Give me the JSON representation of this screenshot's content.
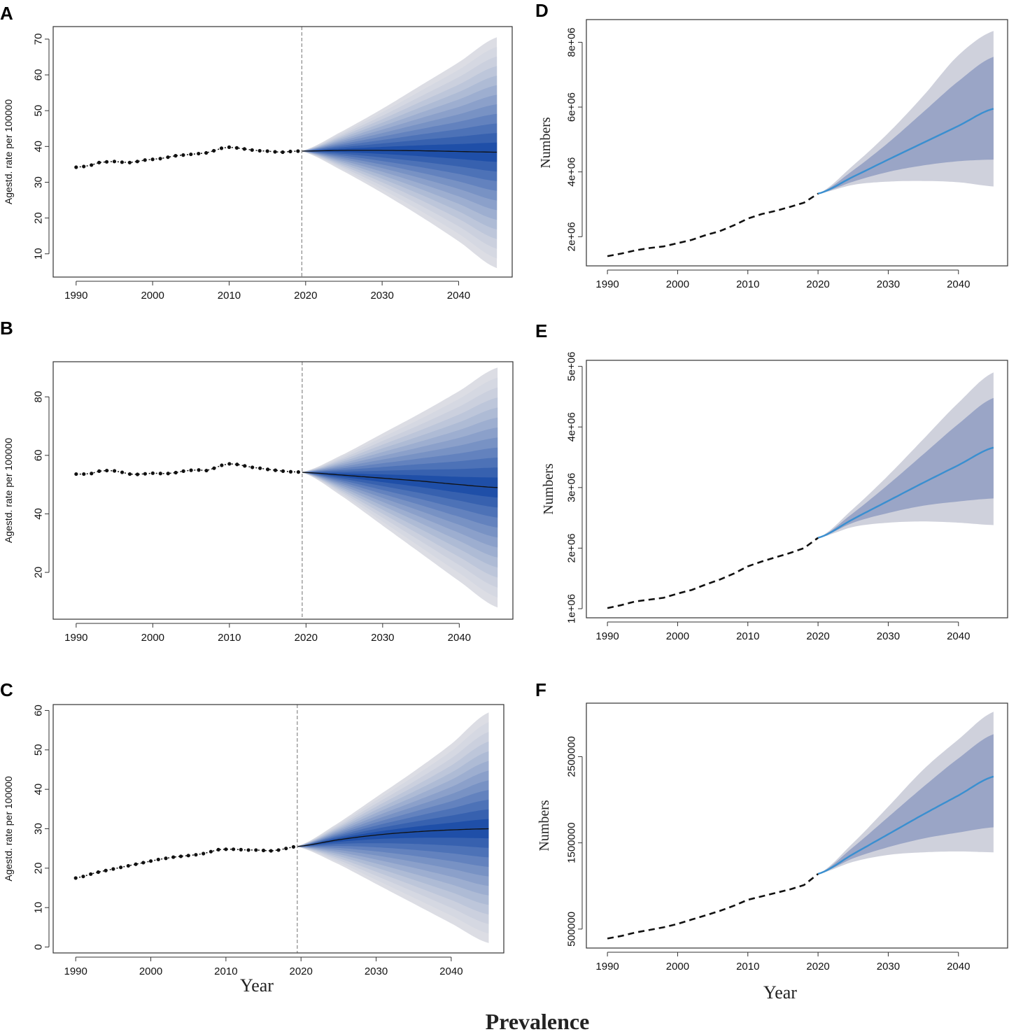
{
  "figure": {
    "title": "Prevalence",
    "year_label_left": "Year",
    "year_label_right": "Year"
  },
  "colors": {
    "band_light": "#dcdde4",
    "band_dark": "#1f4fa8",
    "history_dots": "#111111",
    "median_line": "#111111",
    "blue_line": "#3a8fd0",
    "ci95": "#cfd1dc",
    "ci80": "#9aa5c6"
  },
  "chart_data": [
    {
      "id": "A",
      "letter": "A",
      "type": "area",
      "ylabel": "Agestd. rate per 100000",
      "xlim": [
        1987,
        2047
      ],
      "ylim": [
        3.5,
        73.5
      ],
      "xticks": [
        1990,
        2000,
        2010,
        2020,
        2030,
        2040
      ],
      "xtick_labels": [
        "1990",
        "2000",
        "2010",
        "2020",
        "2030",
        "2040"
      ],
      "yticks": [
        10,
        20,
        30,
        40,
        50,
        60,
        70
      ],
      "ytick_labels": [
        "10",
        "20",
        "30",
        "40",
        "50",
        "60",
        "70"
      ],
      "vline": 2019.5,
      "history": {
        "x": [
          1990,
          1991,
          1992,
          1993,
          1994,
          1995,
          1996,
          1997,
          1998,
          1999,
          2000,
          2001,
          2002,
          2003,
          2004,
          2005,
          2006,
          2007,
          2008,
          2009,
          2010,
          2011,
          2012,
          2013,
          2014,
          2015,
          2016,
          2017,
          2018,
          2019
        ],
        "y": [
          34.2,
          34.4,
          34.8,
          35.5,
          35.7,
          35.8,
          35.6,
          35.5,
          35.8,
          36.2,
          36.4,
          36.6,
          37.0,
          37.4,
          37.6,
          37.8,
          38.0,
          38.2,
          38.8,
          39.5,
          39.8,
          39.6,
          39.3,
          39.0,
          38.8,
          38.7,
          38.5,
          38.4,
          38.6,
          38.7
        ]
      },
      "projection": {
        "x": [
          2019.5,
          2025,
          2030,
          2035,
          2040,
          2045
        ],
        "median": [
          38.7,
          38.9,
          38.9,
          38.8,
          38.6,
          38.4
        ],
        "upper_max": [
          38.8,
          44.5,
          50.5,
          57.0,
          63.5,
          70.5
        ],
        "lower_min": [
          38.6,
          33.0,
          27.0,
          20.5,
          13.5,
          6.0
        ]
      }
    },
    {
      "id": "B",
      "letter": "B",
      "type": "area",
      "ylabel": "Agestd. rate per 100000",
      "xlim": [
        1987,
        2047
      ],
      "ylim": [
        4,
        92
      ],
      "xticks": [
        1990,
        2000,
        2010,
        2020,
        2030,
        2040
      ],
      "xtick_labels": [
        "1990",
        "2000",
        "2010",
        "2020",
        "2030",
        "2040"
      ],
      "yticks": [
        20,
        40,
        60,
        80
      ],
      "ytick_labels": [
        "20",
        "40",
        "60",
        "80"
      ],
      "vline": 2019.5,
      "history": {
        "x": [
          1990,
          1991,
          1992,
          1993,
          1994,
          1995,
          1996,
          1997,
          1998,
          1999,
          2000,
          2001,
          2002,
          2003,
          2004,
          2005,
          2006,
          2007,
          2008,
          2009,
          2010,
          2011,
          2012,
          2013,
          2014,
          2015,
          2016,
          2017,
          2018,
          2019
        ],
        "y": [
          53.6,
          53.6,
          53.8,
          54.6,
          54.8,
          54.7,
          54.2,
          53.6,
          53.5,
          53.7,
          53.9,
          53.8,
          53.8,
          54.1,
          54.6,
          54.9,
          55.0,
          54.8,
          55.6,
          56.6,
          57.1,
          56.9,
          56.4,
          55.9,
          55.6,
          55.2,
          54.9,
          54.6,
          54.4,
          54.3
        ]
      },
      "projection": {
        "x": [
          2019.5,
          2025,
          2030,
          2035,
          2040,
          2045
        ],
        "median": [
          54.2,
          53.2,
          52.2,
          51.2,
          50.0,
          49.0
        ],
        "upper_max": [
          54.3,
          60.5,
          67.5,
          74.5,
          82.0,
          90.0
        ],
        "lower_min": [
          54.1,
          45.5,
          36.0,
          26.5,
          17.0,
          8.0
        ]
      }
    },
    {
      "id": "C",
      "letter": "C",
      "type": "area",
      "ylabel": "Agestd. rate per 100000",
      "xlim": [
        1987,
        2047
      ],
      "ylim": [
        -1.5,
        61.5
      ],
      "xticks": [
        1990,
        2000,
        2010,
        2020,
        2030,
        2040
      ],
      "xtick_labels": [
        "1990",
        "2000",
        "2010",
        "2020",
        "2030",
        "2040"
      ],
      "yticks": [
        0,
        10,
        20,
        30,
        40,
        50,
        60
      ],
      "ytick_labels": [
        "0",
        "10",
        "20",
        "30",
        "40",
        "50",
        "60"
      ],
      "vline": 2019.5,
      "history": {
        "x": [
          1990,
          1991,
          1992,
          1993,
          1994,
          1995,
          1996,
          1997,
          1998,
          1999,
          2000,
          2001,
          2002,
          2003,
          2004,
          2005,
          2006,
          2007,
          2008,
          2009,
          2010,
          2011,
          2012,
          2013,
          2014,
          2015,
          2016,
          2017,
          2018,
          2019
        ],
        "y": [
          17.5,
          17.9,
          18.5,
          19.0,
          19.4,
          19.8,
          20.2,
          20.6,
          21.0,
          21.4,
          21.8,
          22.2,
          22.5,
          22.8,
          23.0,
          23.2,
          23.4,
          23.7,
          24.2,
          24.7,
          24.8,
          24.8,
          24.7,
          24.6,
          24.6,
          24.5,
          24.4,
          24.6,
          25.0,
          25.4
        ]
      },
      "projection": {
        "x": [
          2019.5,
          2025,
          2030,
          2035,
          2040,
          2045
        ],
        "median": [
          25.5,
          27.2,
          28.4,
          29.2,
          29.7,
          30.0
        ],
        "upper_max": [
          25.6,
          31.5,
          38.0,
          44.5,
          51.5,
          59.5
        ],
        "lower_min": [
          25.4,
          21.0,
          16.0,
          11.0,
          6.0,
          1.0
        ]
      }
    },
    {
      "id": "D",
      "letter": "D",
      "type": "area",
      "ylabel": "Numbers",
      "xlim": [
        1987,
        2047
      ],
      "ylim": [
        1100000,
        8700000
      ],
      "xticks": [
        1990,
        2000,
        2010,
        2020,
        2030,
        2040
      ],
      "xtick_labels": [
        "1990",
        "2000",
        "2010",
        "2020",
        "2030",
        "2040"
      ],
      "yticks": [
        2000000,
        4000000,
        6000000,
        8000000
      ],
      "ytick_labels": [
        "2e+06",
        "4e+06",
        "6e+06",
        "8e+06"
      ],
      "history": {
        "x": [
          1990,
          1992,
          1994,
          1996,
          1998,
          2000,
          2002,
          2004,
          2006,
          2008,
          2010,
          2012,
          2014,
          2016,
          2018,
          2020
        ],
        "y": [
          1400000,
          1480000,
          1580000,
          1650000,
          1700000,
          1800000,
          1900000,
          2050000,
          2170000,
          2350000,
          2560000,
          2700000,
          2800000,
          2920000,
          3050000,
          3330000
        ]
      },
      "projection": {
        "x": [
          2020,
          2025,
          2030,
          2035,
          2040,
          2045
        ],
        "mean": [
          3330000,
          3850000,
          4380000,
          4900000,
          5420000,
          5950000
        ],
        "upper95": [
          3330000,
          4200000,
          5200000,
          6350000,
          7600000,
          8350000
        ],
        "lower95": [
          3330000,
          3600000,
          3700000,
          3720000,
          3680000,
          3550000
        ],
        "upper80": [
          3330000,
          4050000,
          4900000,
          5850000,
          6800000,
          7550000
        ],
        "lower80": [
          3330000,
          3700000,
          4000000,
          4200000,
          4330000,
          4380000
        ]
      }
    },
    {
      "id": "E",
      "letter": "E",
      "type": "area",
      "ylabel": "Numbers",
      "xlim": [
        1987,
        2047
      ],
      "ylim": [
        850000,
        5100000
      ],
      "xticks": [
        1990,
        2000,
        2010,
        2020,
        2030,
        2040
      ],
      "xtick_labels": [
        "1990",
        "2000",
        "2010",
        "2020",
        "2030",
        "2040"
      ],
      "yticks": [
        1000000,
        2000000,
        3000000,
        4000000,
        5000000
      ],
      "ytick_labels": [
        "1e+06",
        "2e+06",
        "3e+06",
        "4e+06",
        "5e+06"
      ],
      "history": {
        "x": [
          1990,
          1992,
          1994,
          1996,
          1998,
          2000,
          2002,
          2004,
          2006,
          2008,
          2010,
          2012,
          2014,
          2016,
          2018,
          2020
        ],
        "y": [
          1010000,
          1060000,
          1120000,
          1150000,
          1180000,
          1250000,
          1310000,
          1400000,
          1480000,
          1580000,
          1700000,
          1780000,
          1850000,
          1920000,
          2000000,
          2170000
        ]
      },
      "projection": {
        "x": [
          2020,
          2025,
          2030,
          2035,
          2040,
          2045
        ],
        "mean": [
          2170000,
          2480000,
          2780000,
          3080000,
          3370000,
          3660000
        ],
        "upper95": [
          2170000,
          2650000,
          3200000,
          3800000,
          4400000,
          4900000
        ],
        "lower95": [
          2170000,
          2350000,
          2420000,
          2440000,
          2420000,
          2380000
        ],
        "upper80": [
          2170000,
          2580000,
          3050000,
          3550000,
          4050000,
          4480000
        ],
        "lower80": [
          2170000,
          2420000,
          2580000,
          2700000,
          2770000,
          2820000
        ]
      }
    },
    {
      "id": "F",
      "letter": "F",
      "type": "area",
      "ylabel": "Numbers",
      "xlim": [
        1987,
        2047
      ],
      "ylim": [
        280000,
        3120000
      ],
      "xticks": [
        1990,
        2000,
        2010,
        2020,
        2030,
        2040
      ],
      "xtick_labels": [
        "1990",
        "2000",
        "2010",
        "2020",
        "2030",
        "2040"
      ],
      "yticks": [
        500000,
        1500000,
        2500000
      ],
      "ytick_labels": [
        "500000",
        "1500000",
        "2500000"
      ],
      "history": {
        "x": [
          1990,
          1992,
          1994,
          1996,
          1998,
          2000,
          2002,
          2004,
          2006,
          2008,
          2010,
          2012,
          2014,
          2016,
          2018,
          2020
        ],
        "y": [
          390000,
          420000,
          460000,
          490000,
          520000,
          560000,
          610000,
          660000,
          710000,
          770000,
          840000,
          880000,
          920000,
          960000,
          1010000,
          1140000
        ]
      },
      "projection": {
        "x": [
          2020,
          2025,
          2030,
          2035,
          2040,
          2045
        ],
        "mean": [
          1140000,
          1370000,
          1600000,
          1830000,
          2050000,
          2270000
        ],
        "upper95": [
          1140000,
          1500000,
          1920000,
          2350000,
          2700000,
          3020000
        ],
        "lower95": [
          1140000,
          1280000,
          1360000,
          1390000,
          1400000,
          1390000
        ],
        "upper80": [
          1140000,
          1450000,
          1800000,
          2150000,
          2480000,
          2760000
        ],
        "lower80": [
          1140000,
          1320000,
          1450000,
          1550000,
          1620000,
          1680000
        ]
      }
    }
  ]
}
